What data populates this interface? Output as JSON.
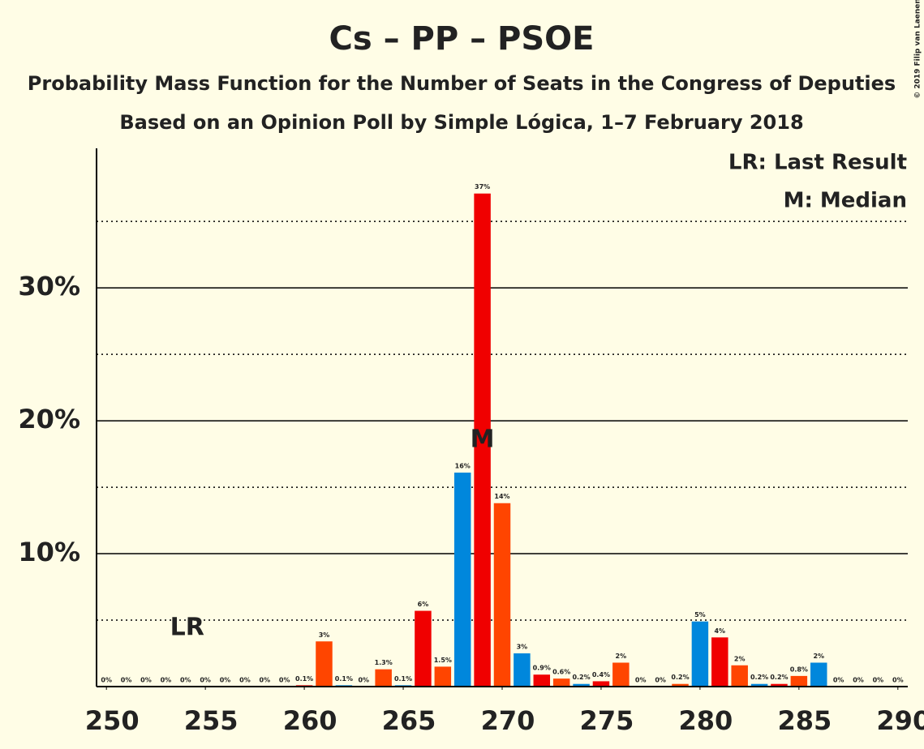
{
  "chart_data": {
    "type": "bar",
    "title": "Cs – PP – PSOE",
    "subtitle": "Probability Mass Function for the Number of Seats in the Congress of Deputies",
    "subtitle2": "Based on an Opinion Poll by Simple Lógica, 1–7 February 2018",
    "copyright": "© 2019 Filip van Laenen",
    "legend": [
      "LR: Last Result",
      "M: Median"
    ],
    "x": [
      250,
      251,
      252,
      253,
      254,
      255,
      256,
      257,
      258,
      259,
      260,
      261,
      262,
      263,
      264,
      265,
      266,
      267,
      268,
      269,
      270,
      271,
      272,
      273,
      274,
      275,
      276,
      277,
      278,
      279,
      280,
      281,
      282,
      283,
      284,
      285,
      286,
      287,
      288,
      289,
      290
    ],
    "values": [
      0,
      0,
      0,
      0,
      0,
      0,
      0,
      0,
      0,
      0,
      0.1,
      3.4,
      0.1,
      0,
      1.3,
      0.1,
      5.7,
      1.5,
      16.1,
      37.1,
      13.8,
      2.5,
      0.9,
      0.6,
      0.2,
      0.4,
      1.8,
      0,
      0,
      0.2,
      4.9,
      3.7,
      1.6,
      0.2,
      0.2,
      0.8,
      1.8,
      0,
      0,
      0,
      0
    ],
    "value_labels": [
      "0%",
      "0%",
      "0%",
      "0%",
      "0%",
      "0%",
      "0%",
      "0%",
      "0%",
      "0%",
      "0.1%",
      "3%",
      "0.1%",
      "0%",
      "1.3%",
      "0.1%",
      "6%",
      "1.5%",
      "16%",
      "37%",
      "14%",
      "3%",
      "0.9%",
      "0.6%",
      "0.2%",
      "0.4%",
      "2%",
      "0%",
      "0%",
      "0.2%",
      "5%",
      "4%",
      "2%",
      "0.2%",
      "0.2%",
      "0.8%",
      "2%",
      "0%",
      "0%",
      "0%",
      "0%"
    ],
    "colors": [
      "#0087dc",
      "#f00000",
      "#ff4500",
      "#0087dc",
      "#f00000",
      "#ff4500",
      "#0087dc",
      "#f00000",
      "#ff4500",
      "#0087dc",
      "#f00000",
      "#ff4500",
      "#0087dc",
      "#f00000",
      "#ff4500",
      "#0087dc",
      "#f00000",
      "#ff4500",
      "#0087dc",
      "#f00000",
      "#ff4500",
      "#0087dc",
      "#f00000",
      "#ff4500",
      "#0087dc",
      "#f00000",
      "#ff4500",
      "#0087dc",
      "#f00000",
      "#ff4500",
      "#0087dc",
      "#f00000",
      "#ff4500",
      "#0087dc",
      "#f00000",
      "#ff4500",
      "#0087dc",
      "#f00000",
      "#ff4500",
      "#0087dc",
      "#f00000"
    ],
    "xlim": [
      249.5,
      290.5
    ],
    "xticks": [
      250,
      255,
      260,
      265,
      270,
      275,
      280,
      285,
      290
    ],
    "ylim": [
      0,
      40.5
    ],
    "yticks": [
      {
        "value": 10,
        "label": "10%"
      },
      {
        "value": 20,
        "label": "20%"
      },
      {
        "value": 30,
        "label": "30%"
      }
    ],
    "minor_yticks": [
      5,
      15,
      25,
      35
    ],
    "grid": true,
    "last_result": {
      "label": "LR",
      "seat": 254
    },
    "median": {
      "label": "M",
      "seat": 269
    }
  }
}
